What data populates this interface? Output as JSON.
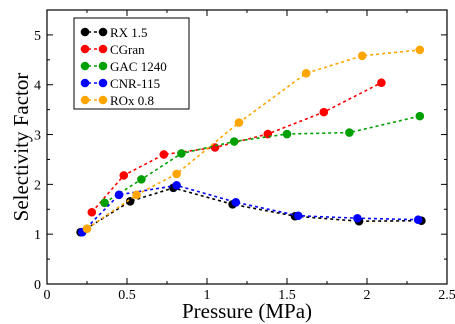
{
  "chart_data": {
    "type": "line",
    "title": "",
    "xlabel": "Pressure (MPa)",
    "ylabel": "Selectivity Factor",
    "xlim": [
      0,
      2.5
    ],
    "ylim": [
      0,
      5.5
    ],
    "xticks": [
      0,
      0.5,
      1,
      1.5,
      2,
      2.5
    ],
    "xtick_labels": [
      "0",
      "0.5",
      "1",
      "1.5",
      "2",
      "2.5"
    ],
    "yticks": [
      0,
      1,
      2,
      3,
      4,
      5
    ],
    "ytick_labels": [
      "0",
      "1",
      "2",
      "3",
      "4",
      "5"
    ],
    "grid": false,
    "legend_position": "top-left",
    "series": [
      {
        "name": "RX 1.5",
        "color": "#000000",
        "x": [
          0.21,
          0.52,
          0.79,
          1.16,
          1.55,
          1.95,
          2.34
        ],
        "y": [
          1.04,
          1.66,
          1.93,
          1.6,
          1.36,
          1.26,
          1.27
        ]
      },
      {
        "name": "CGran",
        "color": "#ff0000",
        "x": [
          0.28,
          0.48,
          0.73,
          1.05,
          1.38,
          1.73,
          2.09
        ],
        "y": [
          1.44,
          2.18,
          2.6,
          2.74,
          3.01,
          3.45,
          4.04
        ]
      },
      {
        "name": "GAC 1240",
        "color": "#00a000",
        "x": [
          0.36,
          0.59,
          0.84,
          1.17,
          1.5,
          1.89,
          2.33
        ],
        "y": [
          1.63,
          2.1,
          2.62,
          2.86,
          3.01,
          3.04,
          3.37
        ]
      },
      {
        "name": "CNR-115",
        "color": "#0000ff",
        "x": [
          0.22,
          0.45,
          0.81,
          1.18,
          1.57,
          1.94,
          2.32
        ],
        "y": [
          1.04,
          1.79,
          1.98,
          1.64,
          1.37,
          1.32,
          1.29
        ]
      },
      {
        "name": "ROx 0.8",
        "color": "#ffa500",
        "x": [
          0.25,
          0.56,
          0.81,
          1.2,
          1.62,
          1.97,
          2.33
        ],
        "y": [
          1.11,
          1.79,
          2.21,
          3.24,
          4.23,
          4.58,
          4.7
        ]
      }
    ]
  }
}
